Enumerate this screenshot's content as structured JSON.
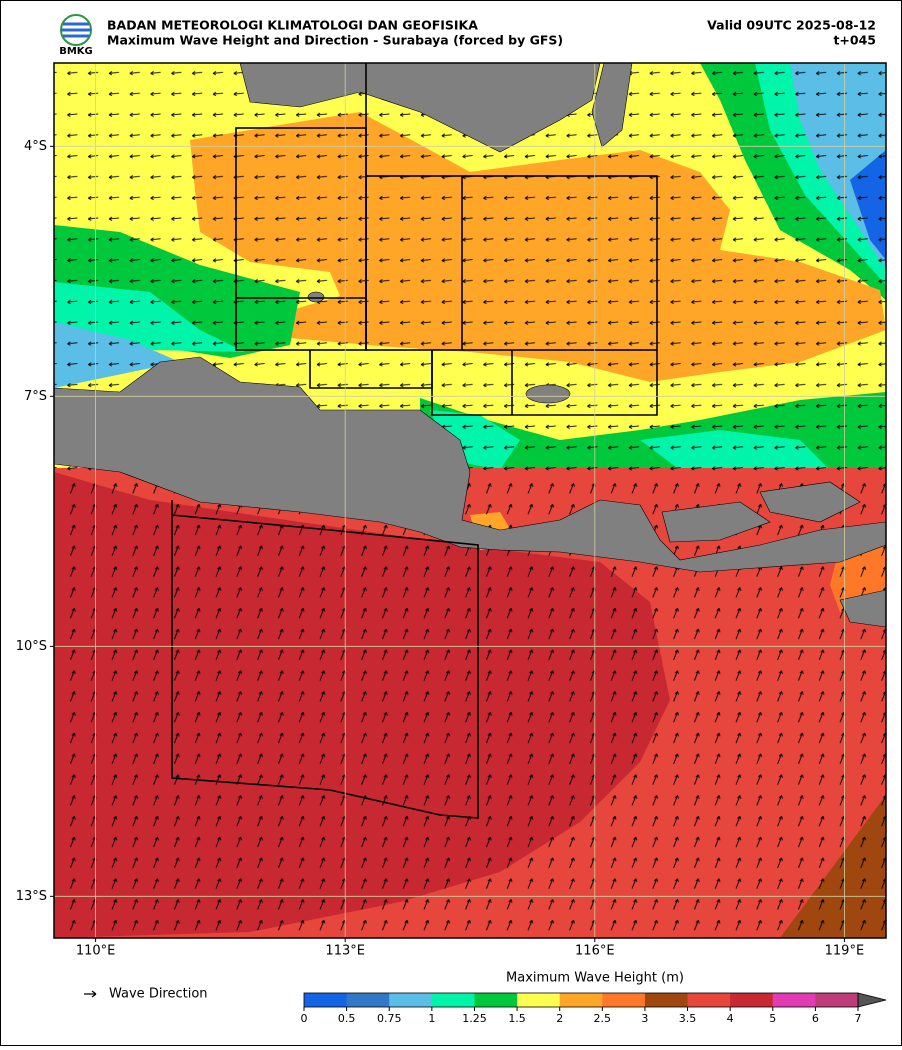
{
  "header": {
    "logo_text": "BMKG",
    "agency": "BADAN METEOROLOGI KLIMATOLOGI DAN GEOFISIKA",
    "title": "Maximum Wave Height and Direction - Surabaya (forced by GFS)",
    "valid": "Valid 09UTC 2025-08-12",
    "lead": "t+045"
  },
  "map": {
    "xlim": [
      109.5,
      119.5
    ],
    "ylim": [
      -13.5,
      -3
    ],
    "xticks": [
      {
        "value": 110,
        "label": "110°E"
      },
      {
        "value": 113,
        "label": "113°E"
      },
      {
        "value": 116,
        "label": "116°E"
      },
      {
        "value": 119,
        "label": "119°E"
      }
    ],
    "yticks": [
      {
        "value": -4,
        "label": "4°S"
      },
      {
        "value": -7,
        "label": "7°S"
      },
      {
        "value": -10,
        "label": "10°S"
      },
      {
        "value": -13,
        "label": "13°S"
      }
    ],
    "grid": true
  },
  "legend": {
    "arrow_label": "Wave Direction"
  },
  "colorbar": {
    "label": "Maximum Wave Height (m)",
    "bounds": [
      0,
      0.5,
      0.75,
      1,
      1.25,
      1.5,
      2,
      2.5,
      3,
      3.5,
      4,
      5,
      6,
      7
    ],
    "colors": [
      "#1464e6",
      "#3278c8",
      "#5abee6",
      "#00f5aa",
      "#00c83c",
      "#ffff50",
      "#ffa528",
      "#ff7828",
      "#a0460f",
      "#e6463c",
      "#c82832",
      "#e13cb4",
      "#be3c78"
    ],
    "extend_color": "#555555"
  }
}
